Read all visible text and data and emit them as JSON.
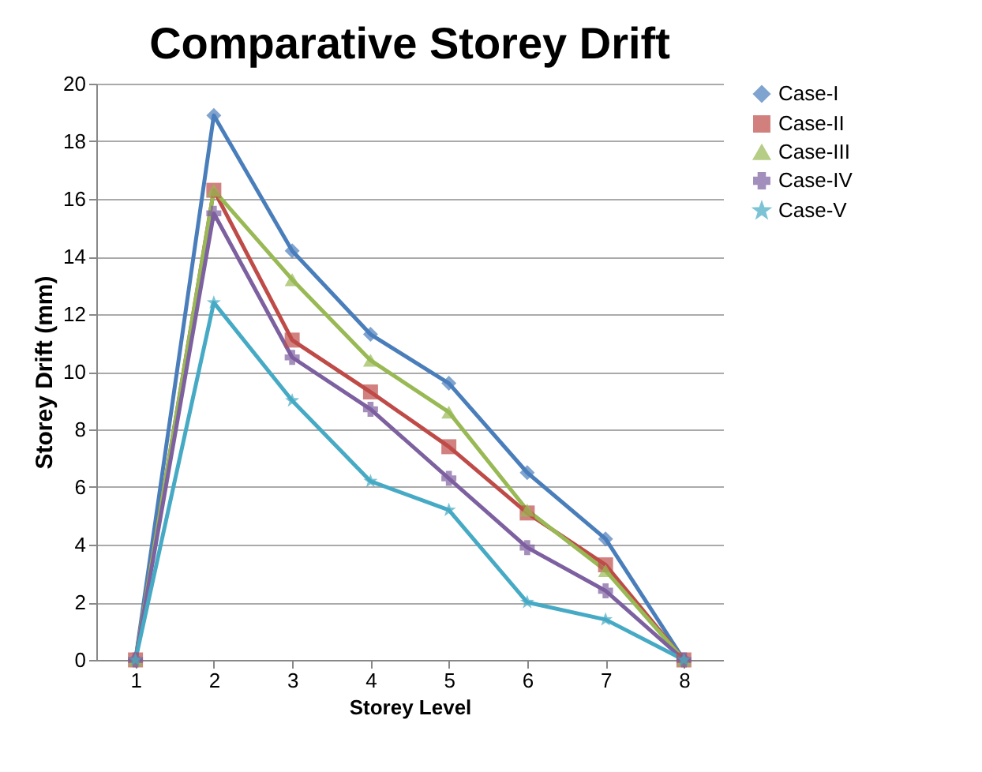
{
  "chart_data": {
    "type": "line",
    "title": "Comparative Storey Drift",
    "xlabel": "Storey Level",
    "ylabel": "Storey Drift (mm)",
    "categories": [
      "1",
      "2",
      "3",
      "4",
      "5",
      "6",
      "7",
      "8"
    ],
    "series": [
      {
        "name": "Case-I",
        "color": "#4a7ebb",
        "marker": "diamond",
        "values": [
          0,
          18.9,
          14.2,
          11.3,
          9.6,
          6.5,
          4.2,
          0
        ]
      },
      {
        "name": "Case-II",
        "color": "#be4b48",
        "marker": "square",
        "values": [
          0,
          16.3,
          11.1,
          9.3,
          7.4,
          5.1,
          3.3,
          0
        ]
      },
      {
        "name": "Case-III",
        "color": "#98b954",
        "marker": "triangle",
        "values": [
          0,
          16.3,
          13.2,
          10.4,
          8.6,
          5.2,
          3.1,
          0
        ]
      },
      {
        "name": "Case-IV",
        "color": "#7d60a0",
        "marker": "cross",
        "values": [
          0,
          15.5,
          10.5,
          8.7,
          6.3,
          3.9,
          2.4,
          0
        ]
      },
      {
        "name": "Case-V",
        "color": "#46aac5",
        "marker": "star",
        "values": [
          0,
          12.4,
          9.0,
          6.2,
          5.2,
          2.0,
          1.4,
          0
        ]
      }
    ],
    "ylim": [
      0,
      20
    ],
    "yticks": [
      0,
      2,
      4,
      6,
      8,
      10,
      12,
      14,
      16,
      18,
      20
    ],
    "grid": "y",
    "legend": "right"
  }
}
